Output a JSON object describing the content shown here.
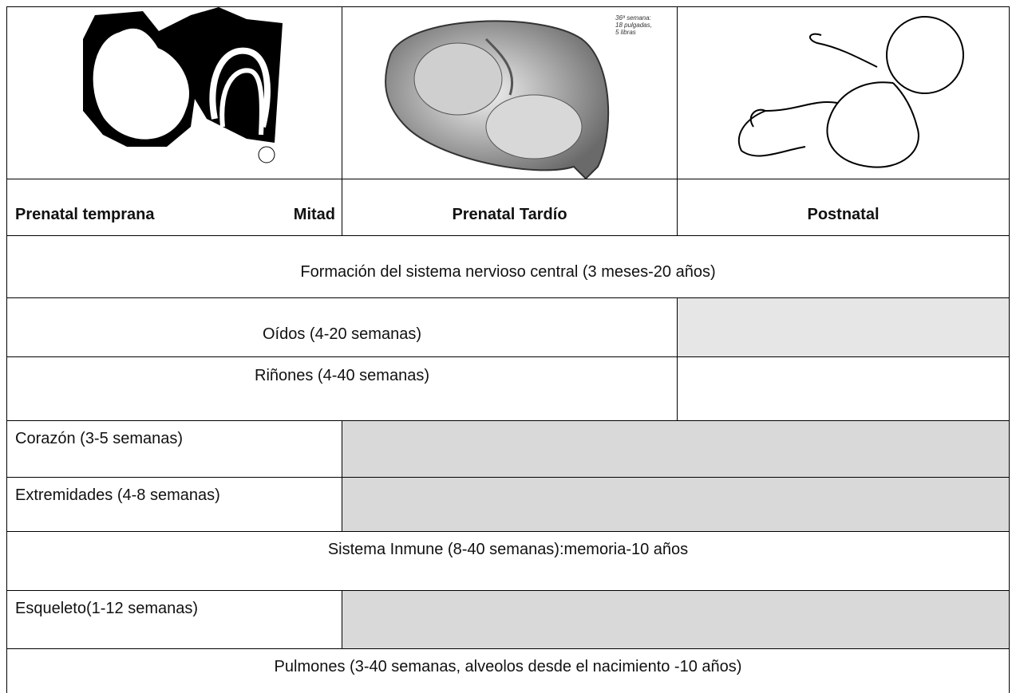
{
  "images": {
    "caption": [
      "36ª semana:",
      "18 pulgadas,",
      "5 libras"
    ]
  },
  "header": {
    "early": "Prenatal temprana",
    "mid": "Mitad",
    "late": "Prenatal Tardío",
    "post": "Postnatal"
  },
  "rows": [
    "Formación del sistema nervioso central (3 meses-20 años)",
    "Oídos (4-20 semanas)",
    "Riñones (4-40 semanas)",
    "Corazón (3-5 semanas)",
    "Extremidades (4-8 semanas)",
    "Sistema Inmune (8-40 semanas):memoria-10 años",
    "Esqueleto(1-12 semanas)",
    "Pulmones (3-40 semanas, alveolos desde el nacimiento -10 años)"
  ]
}
